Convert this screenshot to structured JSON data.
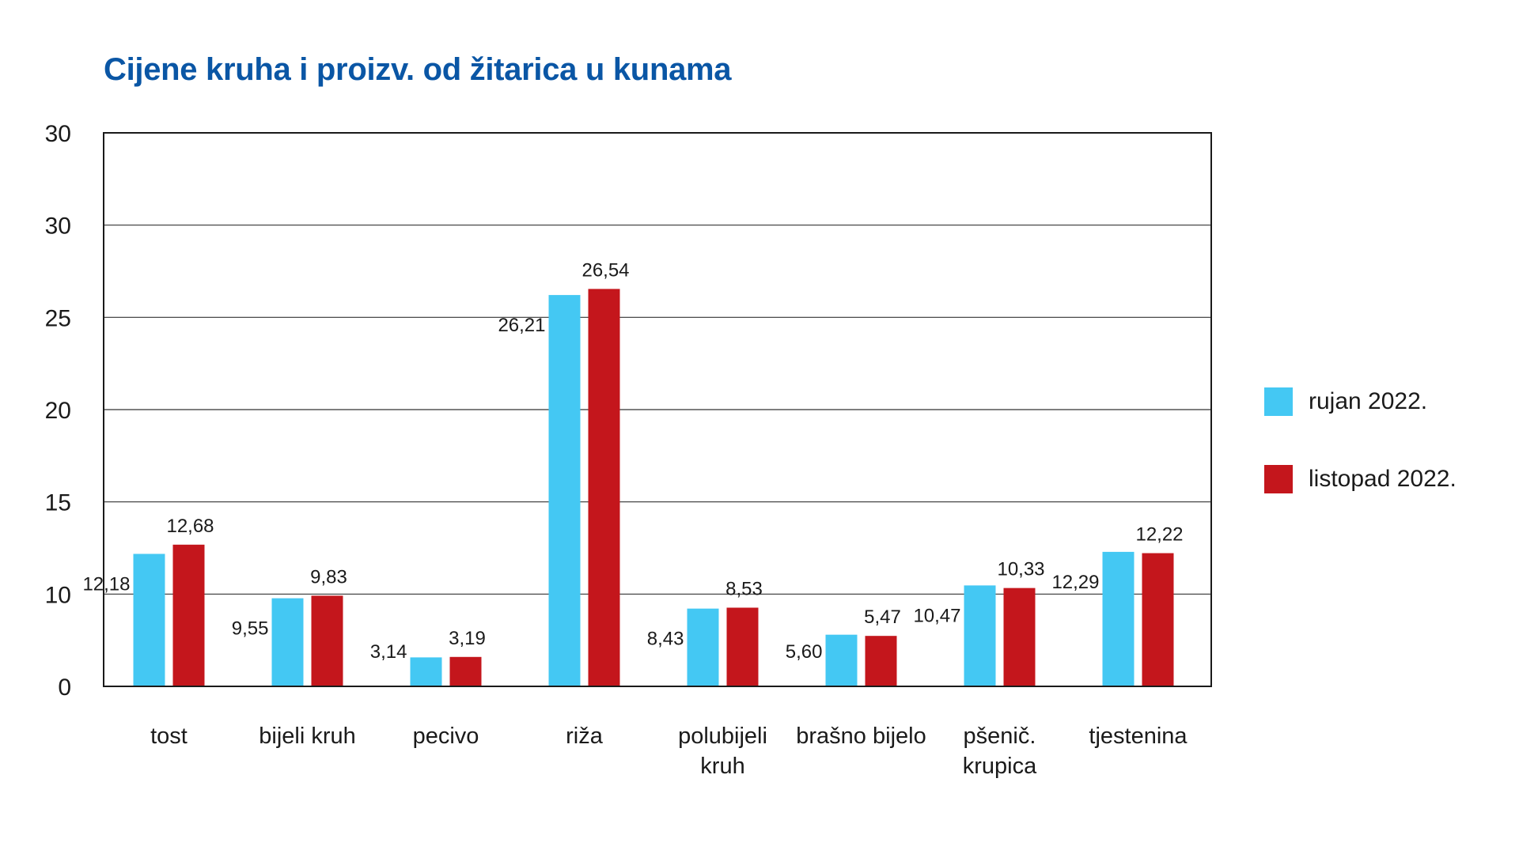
{
  "chart_data": {
    "type": "bar",
    "title": "Cijene kruha i proizv. od žitarica u kunama",
    "xlabel": "",
    "ylabel": "",
    "y_tick_labels": [
      "0",
      "10",
      "15",
      "20",
      "25",
      "30",
      "30"
    ],
    "grid": true,
    "legend_position": "right",
    "categories": [
      [
        "tost"
      ],
      [
        "bijeli kruh"
      ],
      [
        "pecivo"
      ],
      [
        "riža"
      ],
      [
        "polubijeli",
        "kruh"
      ],
      [
        "brašno bijelo"
      ],
      [
        "pšenič.",
        "krupica"
      ],
      [
        "tjestenina"
      ]
    ],
    "series": [
      {
        "name": "rujan 2022.",
        "color": "#44c8f3",
        "values": [
          12.18,
          9.55,
          3.14,
          26.21,
          8.43,
          5.6,
          10.47,
          12.29
        ],
        "labels": [
          "12,18",
          "9,55",
          "3,14",
          "26,21",
          "8,43",
          "5,60",
          "10,47",
          "12,29"
        ]
      },
      {
        "name": "listopad 2022.",
        "color": "#c4161c",
        "values": [
          12.68,
          9.83,
          3.19,
          26.54,
          8.53,
          5.47,
          10.33,
          12.22
        ],
        "labels": [
          "12,68",
          "9,83",
          "3,19",
          "26,54",
          "8,53",
          "5,47",
          "10,33",
          "12,22"
        ]
      }
    ]
  },
  "colors": {
    "title": "#0a56a5",
    "axis": "#1a1a1a",
    "grid": "#333333"
  }
}
